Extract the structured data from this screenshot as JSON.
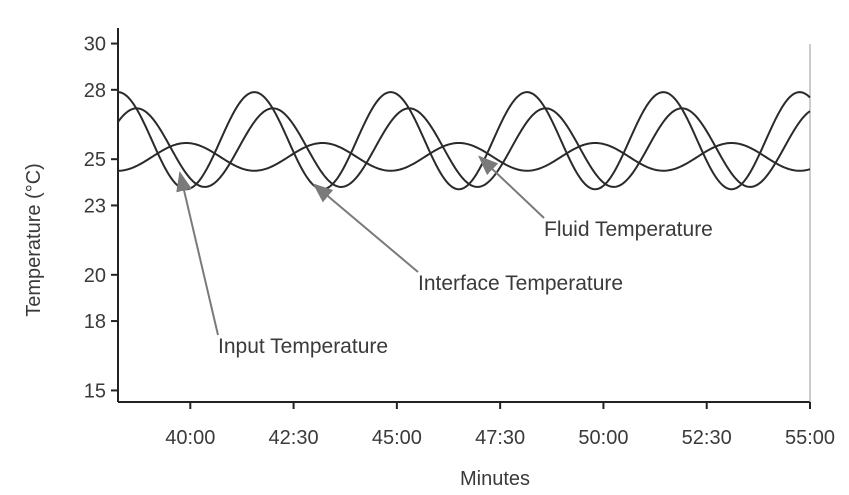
{
  "chart_data": {
    "type": "line",
    "title": "",
    "xlabel": "Minutes",
    "ylabel": "Temperature (°C)",
    "x_ticks": [
      "40:00",
      "42:30",
      "45:00",
      "47:30",
      "50:00",
      "52:30",
      "55:00"
    ],
    "y_ticks": [
      "15",
      "18",
      "20",
      "23",
      "25",
      "28",
      "30"
    ],
    "xlim_minutes": [
      38.25,
      55.0
    ],
    "ylim": [
      14.5,
      30.5
    ],
    "grid": false,
    "series": [
      {
        "name": "Input Temperature",
        "amplitude": 2.1,
        "mean": 25.8,
        "period_min": 3.3,
        "phase_min": 38.25
      },
      {
        "name": "Interface Temperature",
        "amplitude": 1.7,
        "mean": 25.5,
        "period_min": 3.3,
        "phase_min": 38.7
      },
      {
        "name": "Fluid Temperature",
        "amplitude": 0.6,
        "mean": 25.1,
        "period_min": 3.3,
        "phase_min": 39.9
      }
    ],
    "annotations": [
      {
        "text": "Fluid Temperature",
        "points_to_series": "Fluid Temperature",
        "target_x": "47:00",
        "target_y": 25.1
      },
      {
        "text": "Interface Temperature",
        "points_to_series": "Interface Temperature",
        "target_x": "43:00",
        "target_y": 23.9
      },
      {
        "text": "Input Temperature",
        "points_to_series": "Input Temperature",
        "target_x": "39:45",
        "target_y": 24.4
      }
    ],
    "line_color": "#2a2a2a",
    "axis_color": "#222222",
    "arrow_color": "#7a7a7a"
  }
}
